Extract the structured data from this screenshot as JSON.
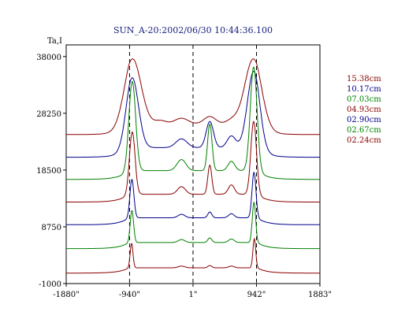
{
  "chart_data": {
    "type": "line",
    "title": "SUN_A-20:2002/06/30 10:44:36.100",
    "ylabel": "Ta,I",
    "xlabel": "",
    "x_ticks": [
      "-1880\"",
      "-940\"",
      "1\"",
      "942\"",
      "1883\""
    ],
    "x_tick_values": [
      -1880,
      -940,
      1,
      942,
      1883
    ],
    "y_ticks": [
      "38000",
      "28250",
      "18500",
      "8750",
      "-1000"
    ],
    "y_tick_values": [
      38000,
      28250,
      18500,
      8750,
      -1000
    ],
    "xlim": [
      -1880,
      1883
    ],
    "ylim": [
      -1000,
      40000
    ],
    "vlines_x": [
      -940,
      1,
      942
    ],
    "legend_position": "right",
    "colors": {
      "red": "#8b0000",
      "blue": "#00008b",
      "green": "#008000",
      "title": "#1a237e"
    },
    "series": [
      {
        "name": "15.38cm",
        "color": "#8b0000",
        "base": 24600,
        "peaks": [
          {
            "x": -895,
            "h": 11200,
            "w": 300
          },
          {
            "x": 895,
            "h": 11200,
            "w": 300
          },
          {
            "x": -480,
            "h": 600,
            "w": 200
          },
          {
            "x": -170,
            "h": 1000,
            "w": 240
          },
          {
            "x": 250,
            "h": 1300,
            "w": 210
          },
          {
            "x": 580,
            "h": 700,
            "w": 200
          }
        ]
      },
      {
        "name": "10.17cm",
        "color": "#00008b",
        "base": 20700,
        "peaks": [
          {
            "x": -900,
            "h": 12000,
            "w": 220
          },
          {
            "x": 900,
            "h": 13100,
            "w": 220
          },
          {
            "x": -170,
            "h": 1500,
            "w": 200
          },
          {
            "x": 250,
            "h": 4500,
            "w": 130
          },
          {
            "x": 570,
            "h": 2000,
            "w": 150
          }
        ]
      },
      {
        "name": "07.03cm",
        "color": "#008000",
        "base": 16900,
        "peaks": [
          {
            "x": -900,
            "h": 15300,
            "w": 120
          },
          {
            "x": 900,
            "h": 17800,
            "w": 120
          },
          {
            "x": -170,
            "h": 1900,
            "w": 160
          },
          {
            "x": 250,
            "h": 8000,
            "w": 80
          },
          {
            "x": 570,
            "h": 1600,
            "w": 120
          }
        ]
      },
      {
        "name": "04.93cm",
        "color": "#8b0000",
        "base": 13000,
        "peaks": [
          {
            "x": -900,
            "h": 10700,
            "w": 100
          },
          {
            "x": 900,
            "h": 12500,
            "w": 100
          },
          {
            "x": -170,
            "h": 1300,
            "w": 140
          },
          {
            "x": 250,
            "h": 5000,
            "w": 70
          },
          {
            "x": 570,
            "h": 1600,
            "w": 110
          }
        ]
      },
      {
        "name": "02.90cm",
        "color": "#00008b",
        "base": 9100,
        "peaks": [
          {
            "x": -905,
            "h": 6600,
            "w": 70
          },
          {
            "x": 905,
            "h": 7800,
            "w": 70
          },
          {
            "x": -170,
            "h": 600,
            "w": 120
          },
          {
            "x": 250,
            "h": 1000,
            "w": 70
          },
          {
            "x": 570,
            "h": 700,
            "w": 100
          }
        ]
      },
      {
        "name": "02.67cm",
        "color": "#008000",
        "base": 5000,
        "peaks": [
          {
            "x": -905,
            "h": 5500,
            "w": 60
          },
          {
            "x": 905,
            "h": 6900,
            "w": 60
          },
          {
            "x": -170,
            "h": 500,
            "w": 120
          },
          {
            "x": 250,
            "h": 800,
            "w": 70
          },
          {
            "x": 570,
            "h": 600,
            "w": 100
          }
        ]
      },
      {
        "name": "02.24cm",
        "color": "#8b0000",
        "base": 800,
        "peaks": [
          {
            "x": -910,
            "h": 4200,
            "w": 50
          },
          {
            "x": 910,
            "h": 5000,
            "w": 50
          },
          {
            "x": -170,
            "h": 300,
            "w": 120
          },
          {
            "x": 250,
            "h": 400,
            "w": 70
          },
          {
            "x": 570,
            "h": 300,
            "w": 100
          }
        ]
      }
    ]
  }
}
